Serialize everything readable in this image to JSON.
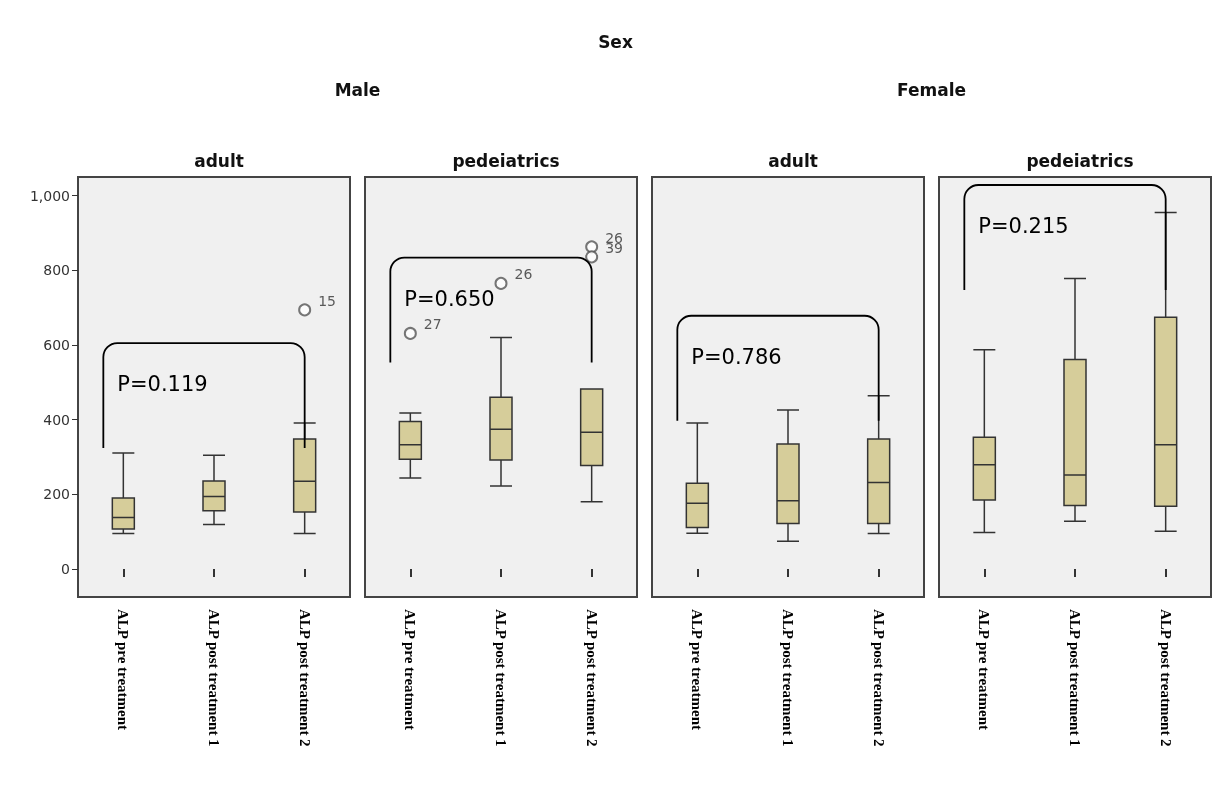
{
  "chart_data": [
    {
      "type": "box",
      "title": "adult",
      "subtitle": "Male",
      "categories": [
        "ALP pre treatment",
        "ALP post treatment 1",
        "ALP post treatment 2"
      ],
      "ylim": [
        -75,
        1050
      ],
      "yticks": [
        0,
        200,
        400,
        600,
        800,
        {
          "value": 1000,
          "label": "1,000"
        }
      ],
      "grid": false,
      "series": [
        {
          "color": "#d6cd9a",
          "boxes": [
            {
              "low": 95,
              "q1": 107,
              "median": 138,
              "q3": 190,
              "high": 311
            },
            {
              "low": 119,
              "q1": 156,
              "median": 194,
              "q3": 236,
              "high": 305
            },
            {
              "low": 95,
              "q1": 153,
              "median": 235,
              "q3": 348,
              "high": 391,
              "outliers": [
                694
              ]
            }
          ]
        }
      ],
      "annotations": [
        "Sex",
        "P=0.119",
        "15"
      ]
    },
    {
      "type": "box",
      "title": "pedeiatrics",
      "categories": [
        "ALP pre treatment",
        "ALP post treatment 1",
        "ALP post treatment 2"
      ],
      "ylim": [
        -75,
        1050
      ],
      "grid": false,
      "tick_labels": "x",
      "series": [
        {
          "color": "#d6cd9a",
          "boxes": [
            {
              "low": 244,
              "q1": 294,
              "median": 333,
              "q3": 395,
              "high": 418,
              "outliers": [
                631
              ]
            },
            {
              "low": 222,
              "q1": 292,
              "median": 374,
              "q3": 460,
              "high": 620,
              "outliers": [
                765
              ]
            },
            {
              "low": 180,
              "q1": 277,
              "median": 366,
              "q3": 482,
              "high": 482,
              "outliers": [
                863,
                836
              ]
            }
          ]
        }
      ],
      "annotations": [
        "P=0.650",
        "27",
        "26",
        "26",
        "39"
      ]
    },
    {
      "type": "box",
      "title": "adult",
      "subtitle": "Female",
      "categories": [
        "ALP pre treatment",
        "ALP post treatment 1",
        "ALP post treatment 2"
      ],
      "ylim": [
        -75,
        1050
      ],
      "grid": false,
      "tick_labels": "x",
      "series": [
        {
          "color": "#d6cd9a",
          "boxes": [
            {
              "low": 96,
              "q1": 111,
              "median": 176,
              "q3": 230,
              "high": 391
            },
            {
              "low": 74,
              "q1": 122,
              "median": 183,
              "q3": 335,
              "high": 426
            },
            {
              "low": 95,
              "q1": 122,
              "median": 232,
              "q3": 348,
              "high": 464
            }
          ]
        }
      ],
      "annotations": [
        "P=0.786"
      ]
    },
    {
      "type": "box",
      "title": "pedeiatrics",
      "categories": [
        "ALP pre treatment",
        "ALP post treatment 1",
        "ALP post treatment 2"
      ],
      "ylim": [
        -75,
        1050
      ],
      "grid": false,
      "tick_labels": "x",
      "series": [
        {
          "color": "#d6cd9a",
          "boxes": [
            {
              "low": 98,
              "q1": 185,
              "median": 279,
              "q3": 353,
              "high": 587
            },
            {
              "low": 128,
              "q1": 170,
              "median": 252,
              "q3": 561,
              "high": 778
            },
            {
              "low": 101,
              "q1": 168,
              "median": 333,
              "q3": 674,
              "high": 955
            }
          ]
        }
      ],
      "annotations": [
        "P=0.215"
      ]
    }
  ]
}
